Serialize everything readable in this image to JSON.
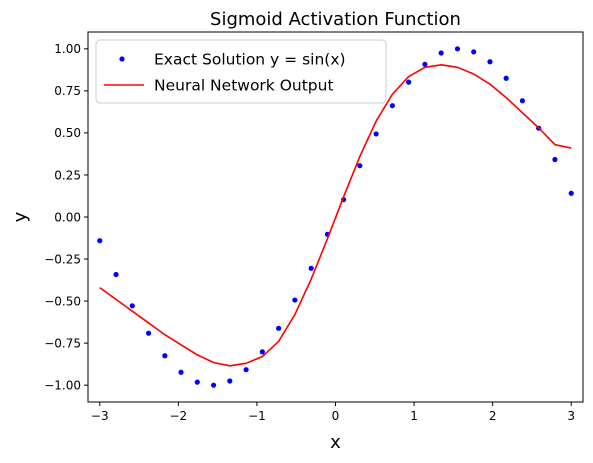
{
  "chart_data": {
    "type": "line",
    "title": "Sigmoid Activation Function",
    "xlabel": "x",
    "ylabel": "y",
    "xlim": [
      -3.15,
      3.15
    ],
    "ylim": [
      -1.1,
      1.1
    ],
    "xticks": [
      -3,
      -2,
      -1,
      0,
      1,
      2,
      3
    ],
    "xtick_labels": [
      "−3",
      "−2",
      "−1",
      "0",
      "1",
      "2",
      "3"
    ],
    "yticks": [
      -1.0,
      -0.75,
      -0.5,
      -0.25,
      0.0,
      0.25,
      0.5,
      0.75,
      1.0
    ],
    "ytick_labels": [
      "−1.00",
      "−0.75",
      "−0.50",
      "−0.25",
      "0.00",
      "0.25",
      "0.50",
      "0.75",
      "1.00"
    ],
    "grid": false,
    "legend_position": "top-left",
    "series": [
      {
        "name": "Exact Solution y = sin(x)",
        "style": "points",
        "color": "#0000ff",
        "x": [
          -3.0,
          -2.793,
          -2.586,
          -2.379,
          -2.172,
          -1.966,
          -1.759,
          -1.552,
          -1.345,
          -1.138,
          -0.931,
          -0.724,
          -0.517,
          -0.31,
          -0.103,
          0.103,
          0.31,
          0.517,
          0.724,
          0.931,
          1.138,
          1.345,
          1.552,
          1.759,
          1.966,
          2.172,
          2.379,
          2.586,
          2.793,
          3.0
        ],
        "y": [
          -0.141,
          -0.342,
          -0.528,
          -0.691,
          -0.825,
          -0.923,
          -0.982,
          -1.0,
          -0.975,
          -0.908,
          -0.802,
          -0.662,
          -0.494,
          -0.305,
          -0.103,
          0.103,
          0.305,
          0.494,
          0.662,
          0.802,
          0.908,
          0.975,
          1.0,
          0.982,
          0.923,
          0.825,
          0.691,
          0.528,
          0.342,
          0.141
        ]
      },
      {
        "name": "Neural Network Output",
        "style": "line",
        "color": "#ff0000",
        "x": [
          -3.0,
          -2.793,
          -2.586,
          -2.379,
          -2.172,
          -1.966,
          -1.759,
          -1.552,
          -1.345,
          -1.138,
          -0.931,
          -0.724,
          -0.517,
          -0.31,
          -0.103,
          0.103,
          0.31,
          0.517,
          0.724,
          0.931,
          1.138,
          1.345,
          1.552,
          1.759,
          1.966,
          2.172,
          2.379,
          2.586,
          2.793,
          3.0
        ],
        "y": [
          -0.42,
          -0.49,
          -0.56,
          -0.63,
          -0.7,
          -0.76,
          -0.82,
          -0.865,
          -0.885,
          -0.87,
          -0.83,
          -0.74,
          -0.58,
          -0.37,
          -0.13,
          0.12,
          0.36,
          0.57,
          0.73,
          0.835,
          0.89,
          0.905,
          0.89,
          0.85,
          0.79,
          0.71,
          0.62,
          0.53,
          0.43,
          0.41
        ]
      }
    ]
  }
}
